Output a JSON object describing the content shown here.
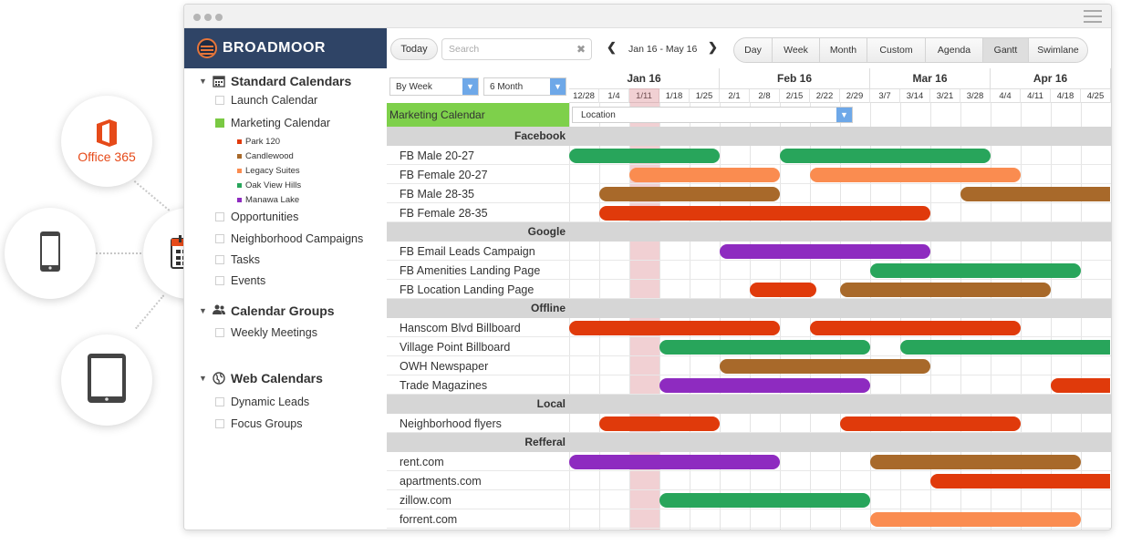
{
  "promo": {
    "office_label": "Office 365",
    "icons": [
      "office365-icon",
      "phone-icon",
      "calendar-icon",
      "tablet-icon"
    ]
  },
  "brand": {
    "name": "BROADMOOR",
    "color": "#2f4466"
  },
  "sidebar": {
    "groups": [
      {
        "label": "Standard Calendars",
        "icon": "calendar-icon"
      },
      {
        "label": "Calendar Groups",
        "icon": "people-icon"
      },
      {
        "label": "Web Calendars",
        "icon": "globe-icon"
      }
    ],
    "standard_items": [
      "Launch Calendar",
      "Marketing Calendar",
      "Opportunities",
      "Neighborhood Campaigns",
      "Tasks",
      "Events"
    ],
    "marketing_subitems": [
      {
        "label": "Park 120",
        "color": "#e03a0b"
      },
      {
        "label": "Candlewood",
        "color": "#a8692a"
      },
      {
        "label": "Legacy Suites",
        "color": "#fa8c50"
      },
      {
        "label": "Oak View Hills",
        "color": "#28a55b"
      },
      {
        "label": "Manawa Lake",
        "color": "#8e2bc0"
      }
    ],
    "group_items": [
      "Weekly Meetings"
    ],
    "web_items": [
      "Dynamic Leads",
      "Focus Groups"
    ]
  },
  "toolbar": {
    "today": "Today",
    "search_placeholder": "Search",
    "range": "Jan 16 - May 16",
    "views": [
      "Day",
      "Week",
      "Month",
      "Custom",
      "Agenda",
      "Gantt",
      "Swimlane"
    ],
    "active_view": "Gantt"
  },
  "grid": {
    "group_by": "By Week",
    "span": "6 Month",
    "months": [
      "Jan 16",
      "Feb 16",
      "Mar 16",
      "Apr 16"
    ],
    "weeks": [
      "12/28",
      "1/4",
      "1/11",
      "1/18",
      "1/25",
      "2/1",
      "2/8",
      "2/15",
      "2/22",
      "2/29",
      "3/7",
      "3/14",
      "3/21",
      "3/28",
      "4/4",
      "4/11",
      "4/18",
      "4/25"
    ],
    "calendar_label": "Marketing Calendar",
    "location_label": "Location",
    "sections": [
      {
        "name": "Facebook",
        "rows": [
          {
            "label": "FB Male 20-27",
            "bars": [
              [
                0,
                5,
                "#28a55b"
              ],
              [
                7,
                14,
                "#28a55b"
              ]
            ]
          },
          {
            "label": "FB Female 20-27",
            "bars": [
              [
                2,
                7,
                "#fa8c50"
              ],
              [
                8,
                15,
                "#fa8c50"
              ]
            ]
          },
          {
            "label": "FB Male 28-35",
            "bars": [
              [
                1,
                7,
                "#a8692a"
              ],
              [
                13,
                18,
                "#a8692a"
              ]
            ]
          },
          {
            "label": "FB Female 28-35",
            "bars": [
              [
                1,
                12,
                "#e03a0b"
              ]
            ]
          }
        ]
      },
      {
        "name": "Google",
        "rows": [
          {
            "label": "FB Email Leads Campaign",
            "bars": [
              [
                5,
                12,
                "#8e2bc0"
              ]
            ]
          },
          {
            "label": "FB Amenities Landing Page",
            "bars": [
              [
                10,
                17,
                "#28a55b"
              ]
            ]
          },
          {
            "label": "FB Location Landing Page",
            "bars": [
              [
                6,
                8.2,
                "#e03a0b"
              ],
              [
                9,
                16,
                "#a8692a"
              ]
            ]
          }
        ]
      },
      {
        "name": "Offline",
        "rows": [
          {
            "label": "Hanscom Blvd Billboard",
            "bars": [
              [
                0,
                7,
                "#e03a0b"
              ],
              [
                8,
                15,
                "#e03a0b"
              ]
            ]
          },
          {
            "label": "Village Point Billboard",
            "bars": [
              [
                3,
                10,
                "#28a55b"
              ],
              [
                11,
                18,
                "#28a55b"
              ]
            ]
          },
          {
            "label": "OWH Newspaper",
            "bars": [
              [
                5,
                12,
                "#a8692a"
              ]
            ]
          },
          {
            "label": "Trade Magazines",
            "bars": [
              [
                3,
                10,
                "#8e2bc0"
              ],
              [
                16,
                18,
                "#e03a0b"
              ]
            ]
          }
        ]
      },
      {
        "name": "Local",
        "rows": [
          {
            "label": "Neighborhood flyers",
            "bars": [
              [
                1,
                5,
                "#e03a0b"
              ],
              [
                9,
                15,
                "#e03a0b"
              ]
            ]
          }
        ]
      },
      {
        "name": "Refferal",
        "rows": [
          {
            "label": "rent.com",
            "bars": [
              [
                0,
                7,
                "#8e2bc0"
              ],
              [
                10,
                17,
                "#a8692a"
              ]
            ]
          },
          {
            "label": "apartments.com",
            "bars": [
              [
                12,
                18,
                "#e03a0b"
              ]
            ]
          },
          {
            "label": "zillow.com",
            "bars": [
              [
                3,
                10,
                "#28a55b"
              ]
            ]
          },
          {
            "label": "forrent.com",
            "bars": [
              [
                10,
                17,
                "#fa8c50"
              ]
            ]
          }
        ]
      }
    ]
  }
}
